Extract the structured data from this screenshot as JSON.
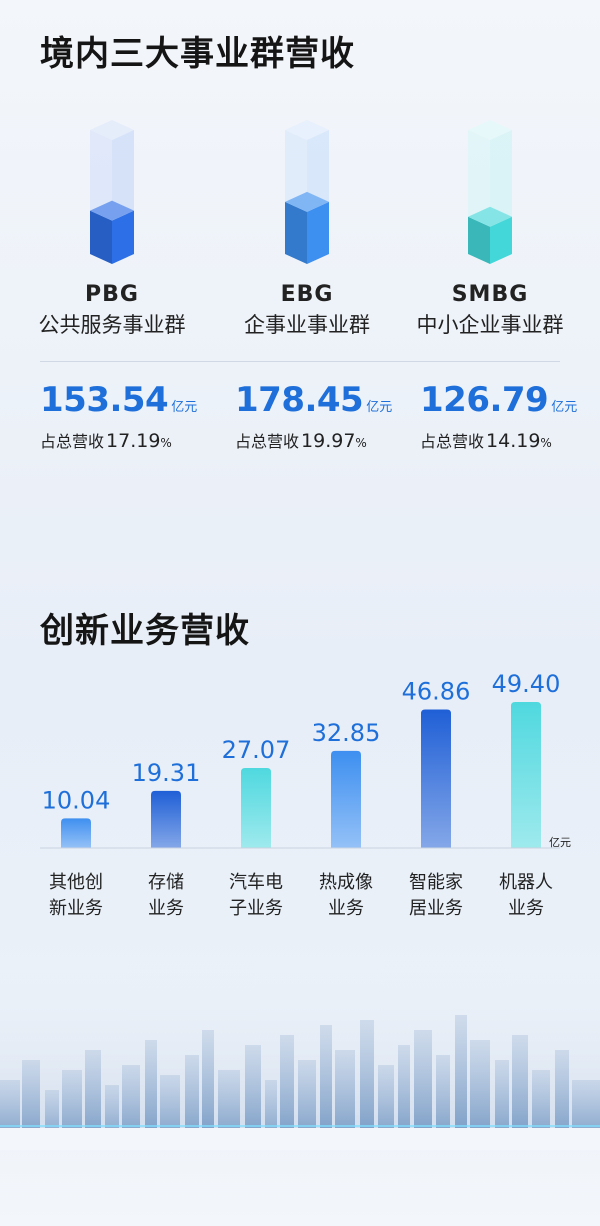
{
  "section1": {
    "title": "境内三大事业群营收",
    "segments": [
      {
        "code": "PBG",
        "name": "公共服务事业群",
        "value": "153.54",
        "unit": "亿元",
        "share_label": "占总营收",
        "share_value": "17.19",
        "share_unit": "%",
        "fill_level": 0.35,
        "color": "#2d6fe6"
      },
      {
        "code": "EBG",
        "name": "企事业事业群",
        "value": "178.45",
        "unit": "亿元",
        "share_label": "占总营收",
        "share_value": "19.97",
        "share_unit": "%",
        "fill_level": 0.42,
        "color": "#3d8ff0"
      },
      {
        "code": "SMBG",
        "name": "中小企业事业群",
        "value": "126.79",
        "unit": "亿元",
        "share_label": "占总营收",
        "share_value": "14.19",
        "share_unit": "%",
        "fill_level": 0.3,
        "color": "#44d7d9"
      }
    ]
  },
  "section2": {
    "title": "创新业务营收"
  },
  "chart_data": {
    "type": "bar",
    "title": "创新业务营收",
    "unit": "亿元",
    "categories": [
      [
        "其他创",
        "新业务"
      ],
      [
        "存储",
        "业务"
      ],
      [
        "汽车电",
        "子业务"
      ],
      [
        "热成像",
        "业务"
      ],
      [
        "智能家",
        "居业务"
      ],
      [
        "机器人",
        "业务"
      ]
    ],
    "values": [
      10.04,
      19.31,
      27.07,
      32.85,
      46.86,
      49.4
    ],
    "value_labels": [
      "10.04",
      "19.31",
      "27.07",
      "32.85",
      "46.86",
      "49.40"
    ],
    "colors": [
      "#3f8ff0",
      "#1f5fd6",
      "#4fd8df",
      "#3d8ff0",
      "#1f5fd6",
      "#4fd8df"
    ],
    "ylim": [
      0,
      49.4
    ],
    "grid": false,
    "legend": false
  }
}
